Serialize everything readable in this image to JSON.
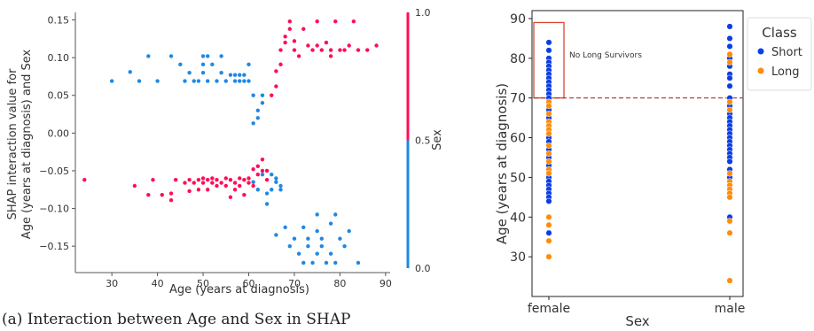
{
  "caption": "(a) Interaction between Age and Sex in SHAP",
  "chart_data": [
    {
      "type": "scatter",
      "xlabel": "Age (years at diagnosis)",
      "ylabel_lines": [
        "SHAP interaction value for",
        "Age (years at diagnosis) and Sex"
      ],
      "xlim": [
        22,
        91
      ],
      "ylim": [
        -0.185,
        0.16
      ],
      "x_ticks": [
        30,
        40,
        50,
        60,
        70,
        80,
        90
      ],
      "y_ticks": [
        -0.15,
        -0.1,
        -0.05,
        0.0,
        0.05,
        0.1,
        0.15
      ],
      "y_tick_labels": [
        "−0.15",
        "−0.10",
        "−0.05",
        "0.00",
        "0.05",
        "0.10",
        "0.15"
      ],
      "colorbar": {
        "label": "Sex",
        "ticks": [
          0.0,
          0.5,
          1.0
        ],
        "tick_labels": [
          "0.0",
          "0.5",
          "1.0"
        ],
        "color_low": "#1e88e5",
        "color_high": "#ff0d57"
      },
      "series": [
        {
          "color": "#1e88e5",
          "points": [
            [
              30,
              0.069
            ],
            [
              34,
              0.081
            ],
            [
              36,
              0.069
            ],
            [
              38,
              0.102
            ],
            [
              40,
              0.069
            ],
            [
              43,
              0.102
            ],
            [
              45,
              0.091
            ],
            [
              46,
              0.069
            ],
            [
              47,
              0.08
            ],
            [
              48,
              0.069
            ],
            [
              49,
              0.069
            ],
            [
              50,
              0.102
            ],
            [
              50,
              0.091
            ],
            [
              50,
              0.08
            ],
            [
              51,
              0.102
            ],
            [
              51,
              0.069
            ],
            [
              52,
              0.091
            ],
            [
              53,
              0.069
            ],
            [
              54,
              0.102
            ],
            [
              54,
              0.08
            ],
            [
              55,
              0.069
            ],
            [
              56,
              0.077
            ],
            [
              57,
              0.069
            ],
            [
              57,
              0.077
            ],
            [
              58,
              0.069
            ],
            [
              58,
              0.077
            ],
            [
              59,
              0.069
            ],
            [
              59,
              0.077
            ],
            [
              60,
              0.091
            ],
            [
              60,
              0.069
            ],
            [
              61,
              0.05
            ],
            [
              61,
              0.013
            ],
            [
              62,
              0.03
            ],
            [
              62,
              0.02
            ],
            [
              63,
              0.05
            ],
            [
              63,
              0.04
            ],
            [
              61,
              -0.065
            ],
            [
              62,
              -0.075
            ],
            [
              63,
              -0.055
            ],
            [
              64,
              -0.08
            ],
            [
              64,
              -0.094
            ],
            [
              65,
              -0.075
            ],
            [
              65,
              -0.055
            ],
            [
              66,
              -0.06
            ],
            [
              66,
              -0.065
            ],
            [
              67,
              -0.075
            ],
            [
              67,
              -0.07
            ],
            [
              66,
              -0.135
            ],
            [
              68,
              -0.125
            ],
            [
              69,
              -0.15
            ],
            [
              70,
              -0.14
            ],
            [
              71,
              -0.16
            ],
            [
              72,
              -0.125
            ],
            [
              72,
              -0.172
            ],
            [
              73,
              -0.15
            ],
            [
              73,
              -0.14
            ],
            [
              74,
              -0.172
            ],
            [
              75,
              -0.16
            ],
            [
              75,
              -0.13
            ],
            [
              75,
              -0.108
            ],
            [
              76,
              -0.14
            ],
            [
              76,
              -0.15
            ],
            [
              77,
              -0.172
            ],
            [
              78,
              -0.12
            ],
            [
              78,
              -0.16
            ],
            [
              79,
              -0.108
            ],
            [
              79,
              -0.172
            ],
            [
              80,
              -0.14
            ],
            [
              81,
              -0.15
            ],
            [
              82,
              -0.13
            ],
            [
              84,
              -0.172
            ]
          ]
        },
        {
          "color": "#ff0d57",
          "points": [
            [
              24,
              -0.062
            ],
            [
              35,
              -0.07
            ],
            [
              38,
              -0.082
            ],
            [
              39,
              -0.062
            ],
            [
              41,
              -0.082
            ],
            [
              43,
              -0.08
            ],
            [
              43,
              -0.089
            ],
            [
              44,
              -0.062
            ],
            [
              46,
              -0.066
            ],
            [
              47,
              -0.062
            ],
            [
              47,
              -0.077
            ],
            [
              48,
              -0.066
            ],
            [
              49,
              -0.062
            ],
            [
              49,
              -0.075
            ],
            [
              50,
              -0.066
            ],
            [
              50,
              -0.06
            ],
            [
              51,
              -0.062
            ],
            [
              51,
              -0.075
            ],
            [
              52,
              -0.066
            ],
            [
              52,
              -0.06
            ],
            [
              53,
              -0.062
            ],
            [
              53,
              -0.07
            ],
            [
              54,
              -0.066
            ],
            [
              55,
              -0.06
            ],
            [
              55,
              -0.07
            ],
            [
              56,
              -0.062
            ],
            [
              56,
              -0.085
            ],
            [
              57,
              -0.066
            ],
            [
              57,
              -0.075
            ],
            [
              58,
              -0.06
            ],
            [
              58,
              -0.07
            ],
            [
              59,
              -0.062
            ],
            [
              59,
              -0.082
            ],
            [
              60,
              -0.066
            ],
            [
              60,
              -0.06
            ],
            [
              61,
              -0.07
            ],
            [
              61,
              -0.048
            ],
            [
              62,
              -0.055
            ],
            [
              62,
              -0.044
            ],
            [
              63,
              -0.05
            ],
            [
              63,
              -0.035
            ],
            [
              64,
              -0.05
            ],
            [
              64,
              -0.062
            ],
            [
              65,
              0.05
            ],
            [
              66,
              0.062
            ],
            [
              66,
              0.082
            ],
            [
              67,
              0.091
            ],
            [
              67,
              0.11
            ],
            [
              68,
              0.128
            ],
            [
              68,
              0.12
            ],
            [
              69,
              0.148
            ],
            [
              69,
              0.138
            ],
            [
              70,
              0.11
            ],
            [
              70,
              0.122
            ],
            [
              71,
              0.102
            ],
            [
              72,
              0.138
            ],
            [
              73,
              0.116
            ],
            [
              74,
              0.11
            ],
            [
              75,
              0.116
            ],
            [
              75,
              0.148
            ],
            [
              76,
              0.11
            ],
            [
              77,
              0.12
            ],
            [
              78,
              0.11
            ],
            [
              78,
              0.102
            ],
            [
              79,
              0.148
            ],
            [
              80,
              0.11
            ],
            [
              81,
              0.11
            ],
            [
              82,
              0.116
            ],
            [
              83,
              0.148
            ],
            [
              84,
              0.11
            ],
            [
              86,
              0.11
            ],
            [
              88,
              0.116
            ]
          ]
        }
      ]
    },
    {
      "type": "scatter",
      "xlabel": "Sex",
      "ylabel": "Age (years at diagnosis)",
      "categories": [
        "female",
        "male"
      ],
      "ylim": [
        20,
        92
      ],
      "y_ticks": [
        30,
        40,
        50,
        60,
        70,
        80,
        90
      ],
      "hline": 70,
      "hline_color": "#b03030",
      "annotation": "No Long Survivors",
      "legend_title": "Class",
      "legend_position": "top-right",
      "series": [
        {
          "name": "Short",
          "color": "#0a3ee6",
          "female": [
            84,
            82,
            80,
            79,
            78,
            77,
            76,
            75,
            74,
            73,
            72,
            71,
            70,
            69,
            67,
            65,
            60,
            59,
            57,
            55,
            53,
            50,
            49,
            48,
            47,
            46,
            45,
            44,
            36
          ],
          "male": [
            88,
            85,
            83,
            80,
            78,
            76,
            75,
            73,
            70,
            68,
            66,
            65,
            64,
            63,
            62,
            61,
            60,
            59,
            58,
            57,
            56,
            55,
            54,
            52,
            50,
            40
          ]
        },
        {
          "name": "Long",
          "color": "#ff8c0a",
          "female": [
            69,
            68,
            66,
            64,
            63,
            62,
            61,
            58,
            56,
            54,
            52,
            51,
            40,
            38,
            34,
            30
          ],
          "male": [
            81,
            79,
            69,
            67,
            51,
            49,
            48,
            47,
            46,
            45,
            39,
            36,
            24
          ]
        }
      ]
    }
  ]
}
